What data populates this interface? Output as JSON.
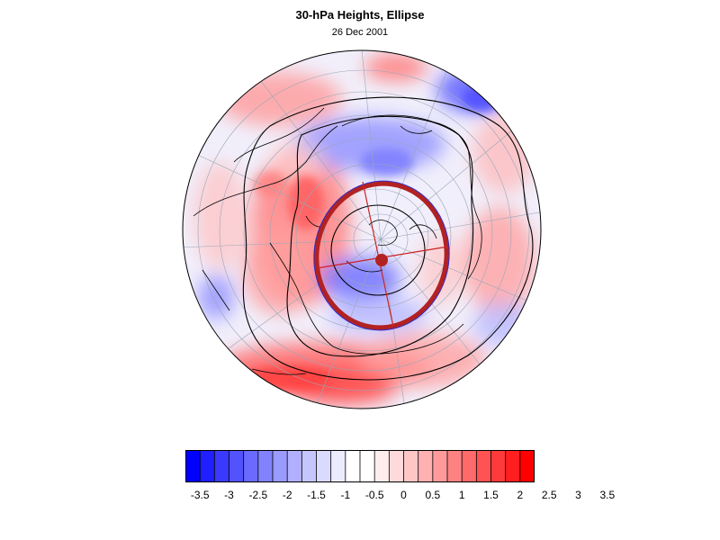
{
  "title": "30-hPa Heights, Ellipse",
  "subtitle": "26 Dec 2001",
  "colorbar": {
    "labels": [
      "-3.5",
      "-3",
      "-2.5",
      "-2",
      "-1.5",
      "-1",
      "-0.5",
      "0",
      "0.5",
      "1",
      "1.5",
      "2",
      "2.5",
      "3",
      "3.5"
    ],
    "colors": [
      "#0000ff",
      "#1f1fff",
      "#3a3aff",
      "#5252ff",
      "#6a6aff",
      "#8282ff",
      "#9a9aff",
      "#b0b0ff",
      "#c6c6ff",
      "#dadaff",
      "#ececff",
      "#ffffff",
      "#ffffff",
      "#ffecec",
      "#ffdada",
      "#ffc6c6",
      "#ffb0b0",
      "#ff9a9a",
      "#ff8282",
      "#ff6a6a",
      "#ff5252",
      "#ff3a3a",
      "#ff1f1f",
      "#ff0000"
    ]
  },
  "map": {
    "projection": "orthographic-north-polar",
    "ellipse_color": "#b22222",
    "ellipse_inner_color": "#1a1acc"
  }
}
